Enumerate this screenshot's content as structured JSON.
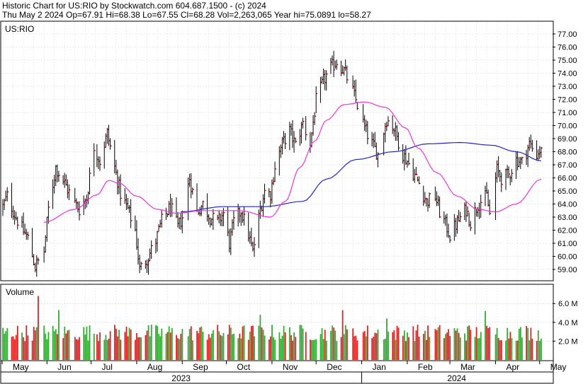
{
  "header": {
    "line1": "Historic Chart for US:RIO by Stockwatch.com 604.687.1500 - (c) 2024",
    "line2": "Thu May  2 2024   Op=67.91  Hi=68.38  Lo=67.55  Cl=68.28  Vol=2,263,065  Year hi=75.0891  lo=58.27"
  },
  "chart_data": [
    {
      "type": "ohlc",
      "title": "US:RIO",
      "symbol": "US:RIO",
      "ylim": [
        58.27,
        77.4
      ],
      "y_ticks": [
        "77.00",
        "76.00",
        "75.00",
        "74.00",
        "73.00",
        "72.00",
        "71.00",
        "70.00",
        "69.00",
        "68.00",
        "67.00",
        "66.00",
        "65.00",
        "64.00",
        "63.00",
        "62.00",
        "61.00",
        "60.00",
        "59.00"
      ],
      "last_bar": {
        "date": "May 2 2024",
        "open": 67.91,
        "high": 68.38,
        "low": 67.55,
        "close": 68.28
      },
      "price_path": [
        [
          "2023-05-02",
          63.8
        ],
        [
          "2023-05-05",
          64.6
        ],
        [
          "2023-05-10",
          63.2
        ],
        [
          "2023-05-15",
          62.1
        ],
        [
          "2023-05-19",
          61.4
        ],
        [
          "2023-05-24",
          59.2
        ],
        [
          "2023-05-30",
          60.4
        ],
        [
          "2023-06-02",
          63.6
        ],
        [
          "2023-06-07",
          66.8
        ],
        [
          "2023-06-13",
          65.6
        ],
        [
          "2023-06-19",
          64.2
        ],
        [
          "2023-06-23",
          63.6
        ],
        [
          "2023-06-28",
          64.5
        ],
        [
          "2023-07-03",
          68.4
        ],
        [
          "2023-07-07",
          67.3
        ],
        [
          "2023-07-12",
          69.4
        ],
        [
          "2023-07-17",
          66.8
        ],
        [
          "2023-07-21",
          64.8
        ],
        [
          "2023-07-26",
          63.6
        ],
        [
          "2023-07-31",
          62.0
        ],
        [
          "2023-08-03",
          59.0
        ],
        [
          "2023-08-09",
          60.0
        ],
        [
          "2023-08-14",
          61.2
        ],
        [
          "2023-08-18",
          62.7
        ],
        [
          "2023-08-24",
          63.8
        ],
        [
          "2023-08-29",
          62.2
        ],
        [
          "2023-09-01",
          63.0
        ],
        [
          "2023-09-06",
          66.0
        ],
        [
          "2023-09-11",
          63.4
        ],
        [
          "2023-09-15",
          64.0
        ],
        [
          "2023-09-20",
          63.0
        ],
        [
          "2023-09-25",
          62.6
        ],
        [
          "2023-09-29",
          63.3
        ],
        [
          "2023-10-03",
          61.0
        ],
        [
          "2023-10-06",
          62.6
        ],
        [
          "2023-10-11",
          63.5
        ],
        [
          "2023-10-16",
          61.7
        ],
        [
          "2023-10-19",
          60.3
        ],
        [
          "2023-10-24",
          63.6
        ],
        [
          "2023-10-27",
          65.0
        ],
        [
          "2023-10-31",
          64.8
        ],
        [
          "2023-11-03",
          66.9
        ],
        [
          "2023-11-08",
          68.6
        ],
        [
          "2023-11-13",
          69.6
        ],
        [
          "2023-11-17",
          68.5
        ],
        [
          "2023-11-22",
          70.2
        ],
        [
          "2023-11-27",
          68.6
        ],
        [
          "2023-12-01",
          71.9
        ],
        [
          "2023-12-06",
          73.4
        ],
        [
          "2023-12-11",
          74.4
        ],
        [
          "2023-12-15",
          74.9
        ],
        [
          "2023-12-20",
          74.2
        ],
        [
          "2023-12-26",
          72.6
        ],
        [
          "2023-12-29",
          71.6
        ],
        [
          "2024-01-03",
          69.8
        ],
        [
          "2024-01-08",
          68.6
        ],
        [
          "2024-01-12",
          67.8
        ],
        [
          "2024-01-18",
          70.5
        ],
        [
          "2024-01-23",
          69.8
        ],
        [
          "2024-01-29",
          67.8
        ],
        [
          "2024-02-01",
          67.3
        ],
        [
          "2024-02-05",
          66.4
        ],
        [
          "2024-02-09",
          65.6
        ],
        [
          "2024-02-14",
          64.2
        ],
        [
          "2024-02-20",
          64.6
        ],
        [
          "2024-02-23",
          63.4
        ],
        [
          "2024-02-28",
          62.2
        ],
        [
          "2024-03-01",
          61.6
        ],
        [
          "2024-03-06",
          62.6
        ],
        [
          "2024-03-12",
          63.6
        ],
        [
          "2024-03-15",
          62.6
        ],
        [
          "2024-03-20",
          64.0
        ],
        [
          "2024-03-26",
          64.6
        ],
        [
          "2024-03-28",
          63.2
        ],
        [
          "2024-04-02",
          66.6
        ],
        [
          "2024-04-05",
          66.0
        ],
        [
          "2024-04-10",
          66.2
        ],
        [
          "2024-04-15",
          67.4
        ],
        [
          "2024-04-19",
          67.2
        ],
        [
          "2024-04-24",
          68.6
        ],
        [
          "2024-04-29",
          67.8
        ],
        [
          "2024-05-02",
          68.28
        ]
      ],
      "ma_short": [
        [
          "2023-05-30",
          62.6
        ],
        [
          "2023-06-20",
          63.6
        ],
        [
          "2023-07-05",
          64.7
        ],
        [
          "2023-07-13",
          65.8
        ],
        [
          "2023-07-20",
          65.6
        ],
        [
          "2023-08-01",
          64.6
        ],
        [
          "2023-08-15",
          63.6
        ],
        [
          "2023-08-28",
          63.3
        ],
        [
          "2023-09-15",
          63.5
        ],
        [
          "2023-10-10",
          63.5
        ],
        [
          "2023-10-31",
          63.0
        ],
        [
          "2023-11-10",
          64.2
        ],
        [
          "2023-11-20",
          66.8
        ],
        [
          "2023-11-30",
          68.8
        ],
        [
          "2023-12-08",
          70.4
        ],
        [
          "2023-12-20",
          71.6
        ],
        [
          "2024-01-03",
          71.8
        ],
        [
          "2024-01-17",
          71.4
        ],
        [
          "2024-01-31",
          69.8
        ],
        [
          "2024-02-08",
          68.3
        ],
        [
          "2024-02-21",
          66.4
        ],
        [
          "2024-03-06",
          64.6
        ],
        [
          "2024-03-20",
          63.6
        ],
        [
          "2024-04-01",
          63.4
        ],
        [
          "2024-04-15",
          64.0
        ],
        [
          "2024-05-02",
          65.9
        ]
      ],
      "ma_long": [
        [
          "2023-08-31",
          63.4
        ],
        [
          "2023-09-29",
          63.8
        ],
        [
          "2023-10-27",
          63.8
        ],
        [
          "2023-11-22",
          64.2
        ],
        [
          "2023-12-08",
          65.9
        ],
        [
          "2023-12-28",
          67.4
        ],
        [
          "2024-01-23",
          68.0
        ],
        [
          "2024-02-15",
          68.6
        ],
        [
          "2024-03-08",
          68.7
        ],
        [
          "2024-03-29",
          68.5
        ],
        [
          "2024-04-15",
          68.0
        ],
        [
          "2024-05-02",
          67.3
        ]
      ]
    },
    {
      "type": "bar",
      "title": "Volume",
      "ylabel": "Volume",
      "y_ticks": [
        "6.0 M",
        "4.0 M",
        "2.0 M"
      ],
      "ylim": [
        0,
        8.3
      ],
      "units": "M",
      "spikes": [
        [
          "2023-05-26",
          6.8
        ],
        [
          "2023-05-29",
          6.2
        ],
        [
          "2023-06-09",
          5.3
        ],
        [
          "2023-10-24",
          4.8
        ],
        [
          "2023-12-19",
          5.3
        ],
        [
          "2024-01-18",
          4.4
        ],
        [
          "2024-03-25",
          5.2
        ]
      ]
    }
  ],
  "x_axis": {
    "months": [
      "May",
      "Jun",
      "Jul",
      "Aug",
      "Sep",
      "Oct",
      "Nov",
      "Dec",
      "Jan",
      "Feb",
      "Mar",
      "Apr",
      "May"
    ],
    "years": [
      "2023",
      "2024"
    ]
  }
}
